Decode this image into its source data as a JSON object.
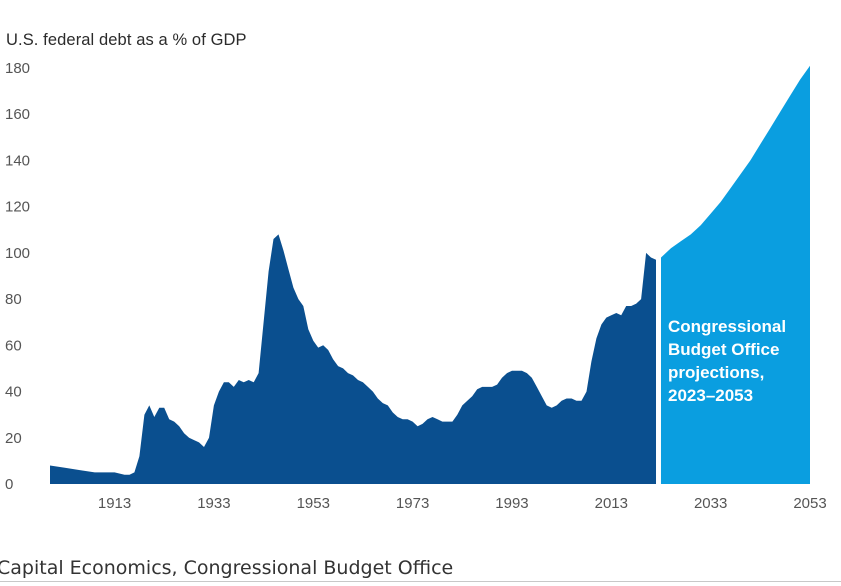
{
  "chart_data": {
    "type": "area",
    "title": "U.S. federal debt as a % of GDP",
    "xlabel": "",
    "ylabel": "",
    "xlim": [
      1900,
      2053
    ],
    "ylim": [
      0,
      180
    ],
    "yticks": [
      0,
      20,
      40,
      60,
      80,
      100,
      120,
      140,
      160,
      180
    ],
    "xticks": [
      1913,
      1933,
      1953,
      1973,
      1993,
      2013,
      2033,
      2053
    ],
    "grid": false,
    "colors": {
      "historical": "#0a4f8f",
      "projection": "#0a9ee0"
    },
    "series": [
      {
        "x": [
          1900,
          1903,
          1906,
          1909,
          1910,
          1913,
          1915,
          1916,
          1917,
          1918,
          1919,
          1920,
          1921,
          1922,
          1923,
          1924,
          1925,
          1926,
          1927,
          1928,
          1929,
          1930,
          1931,
          1932,
          1933,
          1934,
          1935,
          1936,
          1937,
          1938,
          1939,
          1940,
          1941,
          1942,
          1943,
          1944,
          1945,
          1946,
          1947,
          1948,
          1949,
          1950,
          1951,
          1952,
          1953,
          1954,
          1955,
          1956,
          1957,
          1958,
          1959,
          1960,
          1961,
          1962,
          1963,
          1964,
          1965,
          1966,
          1967,
          1968,
          1969,
          1970,
          1971,
          1972,
          1973,
          1974,
          1975,
          1976,
          1977,
          1978,
          1979,
          1980,
          1981,
          1982,
          1983,
          1984,
          1985,
          1986,
          1987,
          1988,
          1989,
          1990,
          1991,
          1992,
          1993,
          1994,
          1995,
          1996,
          1997,
          1998,
          1999,
          2000,
          2001,
          2002,
          2003,
          2004,
          2005,
          2006,
          2007,
          2008,
          2009,
          2010,
          2011,
          2012,
          2013,
          2014,
          2015,
          2016,
          2017,
          2018,
          2019,
          2020,
          2021,
          2022
        ],
        "values": [
          8,
          7,
          6,
          5,
          5,
          5,
          4,
          4,
          5,
          12,
          30,
          34,
          29,
          33,
          33,
          28,
          27,
          25,
          22,
          20,
          19,
          18,
          16,
          20,
          34,
          40,
          44,
          44,
          42,
          45,
          44,
          45,
          44,
          48,
          70,
          92,
          106,
          108,
          101,
          93,
          85,
          80,
          77,
          67,
          62,
          59,
          60,
          58,
          54,
          51,
          50,
          48,
          47,
          45,
          44,
          42,
          40,
          37,
          35,
          34,
          31,
          29,
          28,
          28,
          27,
          25,
          26,
          28,
          29,
          28,
          27,
          27,
          27,
          30,
          34,
          36,
          38,
          41,
          42,
          42,
          42,
          43,
          46,
          48,
          49,
          49,
          49,
          48,
          46,
          42,
          38,
          34,
          33,
          34,
          36,
          37,
          37,
          36,
          36,
          40,
          53,
          63,
          69,
          72,
          73,
          74,
          73,
          77,
          77,
          78,
          80,
          100,
          98,
          97
        ]
      },
      {
        "x": [
          2023,
          2025,
          2027,
          2029,
          2031,
          2033,
          2035,
          2037,
          2039,
          2041,
          2043,
          2045,
          2047,
          2049,
          2051,
          2053
        ],
        "values": [
          98,
          102,
          105,
          108,
          112,
          117,
          122,
          128,
          134,
          140,
          147,
          154,
          161,
          168,
          175,
          181
        ]
      }
    ],
    "annotations": [
      "Congressional",
      "Budget Office",
      "projections,",
      "2023–2053"
    ]
  },
  "source_text": "Capital Economics, Congressional Budget Office"
}
